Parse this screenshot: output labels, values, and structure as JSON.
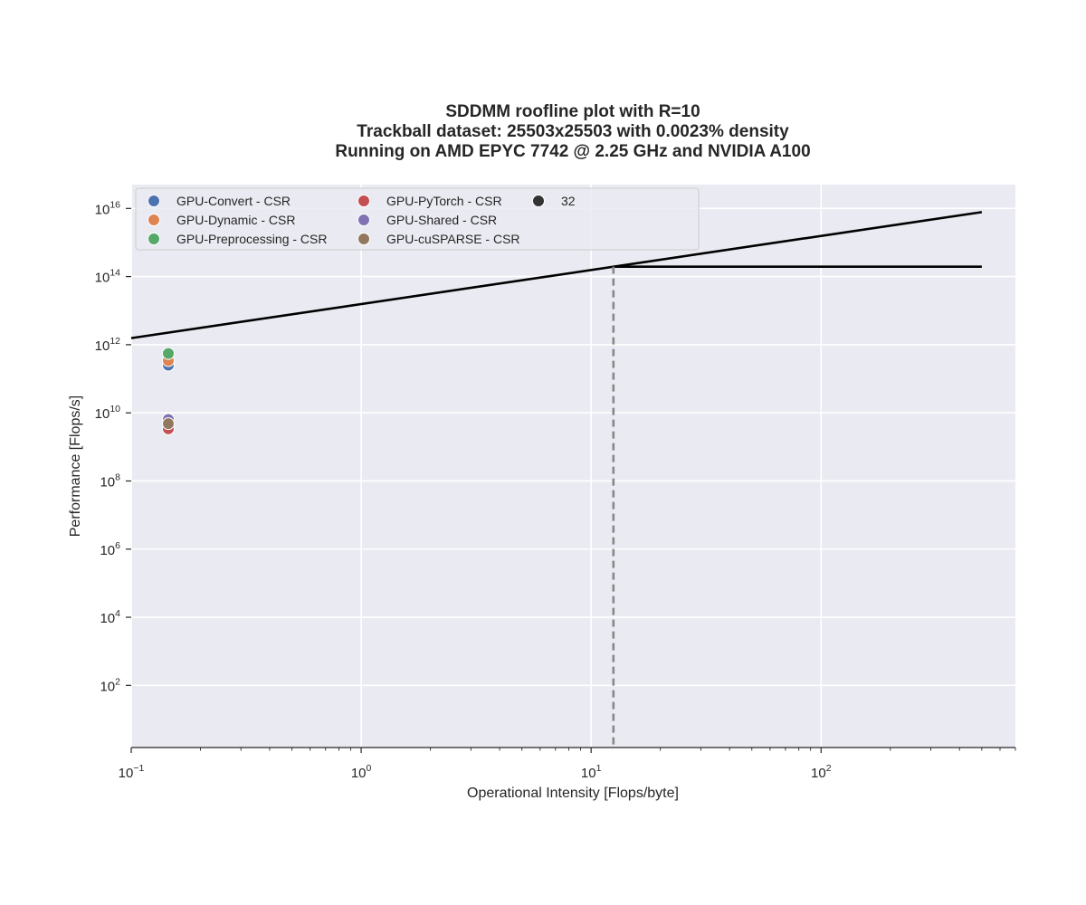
{
  "chart_data": {
    "type": "scatter",
    "title_lines": [
      "SDDMM roofline plot with R=10",
      "Trackball dataset: 25503x25503 with 0.0023% density",
      "Running on AMD EPYC 7742 @ 2.25 GHz and NVIDIA A100"
    ],
    "xlabel": "Operational Intensity [Flops/byte]",
    "ylabel": "Performance [Flops/s]",
    "xscale": "log",
    "yscale": "log",
    "xlim": [
      0.1,
      700
    ],
    "ylim": [
      1.5,
      50000000000000000
    ],
    "grid": true,
    "legend_position": "top-left",
    "x_ticks": [
      {
        "base": "10",
        "exp": "−1",
        "value": 0.1
      },
      {
        "base": "10",
        "exp": "0",
        "value": 1
      },
      {
        "base": "10",
        "exp": "1",
        "value": 10
      },
      {
        "base": "10",
        "exp": "2",
        "value": 100
      }
    ],
    "y_ticks": [
      {
        "base": "10",
        "exp": "2",
        "value": 100
      },
      {
        "base": "10",
        "exp": "4",
        "value": 10000
      },
      {
        "base": "10",
        "exp": "6",
        "value": 1000000
      },
      {
        "base": "10",
        "exp": "8",
        "value": 100000000
      },
      {
        "base": "10",
        "exp": "10",
        "value": 10000000000
      },
      {
        "base": "10",
        "exp": "12",
        "value": 1000000000000
      },
      {
        "base": "10",
        "exp": "14",
        "value": 100000000000000
      },
      {
        "base": "10",
        "exp": "16",
        "value": 10000000000000000
      }
    ],
    "series": [
      {
        "name": "GPU-Convert - CSR",
        "color": "#4c72b0",
        "points": [
          {
            "x": 0.145,
            "y": 250000000000
          }
        ]
      },
      {
        "name": "GPU-Dynamic - CSR",
        "color": "#dd8452",
        "points": [
          {
            "x": 0.145,
            "y": 340000000000
          }
        ]
      },
      {
        "name": "GPU-Preprocessing - CSR",
        "color": "#55a868",
        "points": [
          {
            "x": 0.145,
            "y": 550000000000
          }
        ]
      },
      {
        "name": "GPU-PyTorch - CSR",
        "color": "#c44e52",
        "points": [
          {
            "x": 0.145,
            "y": 3400000000
          }
        ]
      },
      {
        "name": "GPU-Shared - CSR",
        "color": "#8172b3",
        "points": [
          {
            "x": 0.145,
            "y": 6400000000
          }
        ]
      },
      {
        "name": "GPU-cuSPARSE - CSR",
        "color": "#937860",
        "points": [
          {
            "x": 0.145,
            "y": 4800000000
          }
        ]
      },
      {
        "name": "32",
        "color": "#333333",
        "points": []
      }
    ],
    "roofline": {
      "color": "#000000",
      "memory_bound": [
        {
          "x": 0.1,
          "y": 1560000000000
        },
        {
          "x": 500,
          "y": 7800000000000000
        }
      ],
      "compute_bound": [
        {
          "x": 12.5,
          "y": 195000000000000
        },
        {
          "x": 500,
          "y": 195000000000000
        }
      ],
      "ridge": {
        "x": 12.5,
        "color": "#888888",
        "style": "dashed"
      }
    }
  }
}
